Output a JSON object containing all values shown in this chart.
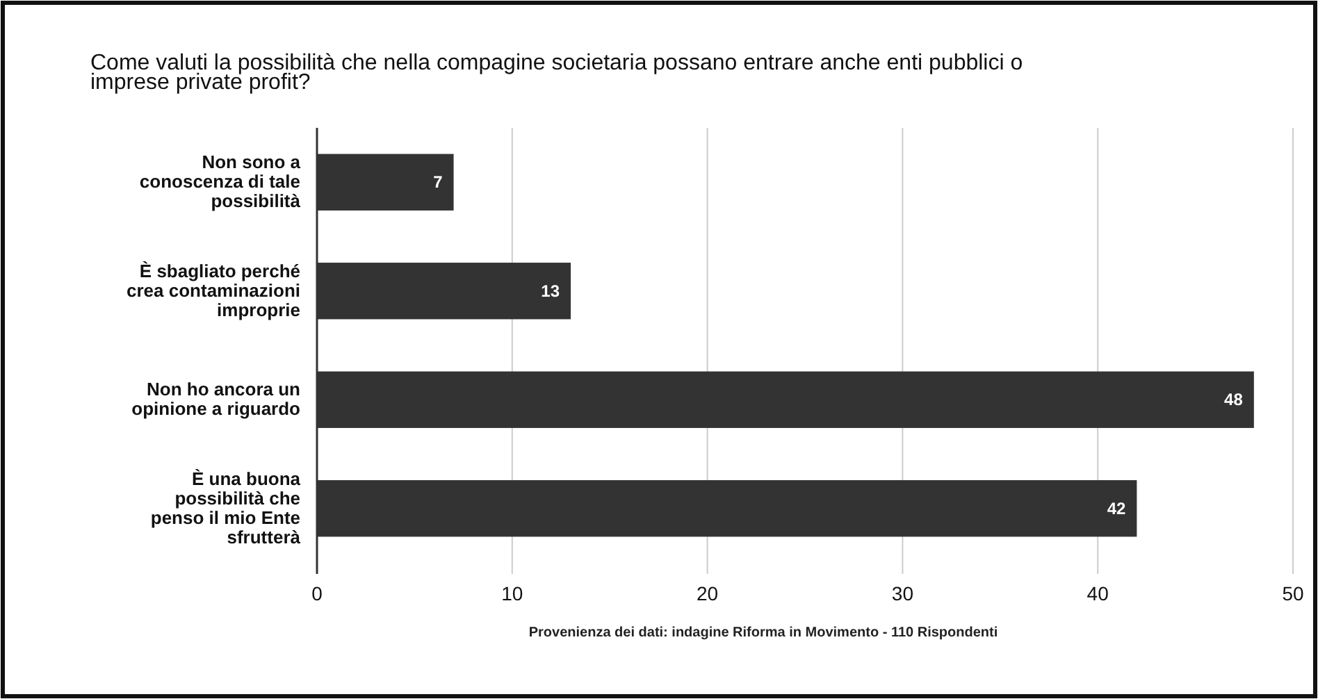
{
  "chart_data": {
    "type": "bar",
    "orientation": "horizontal",
    "title": "Come valuti la possibilità che nella compagine societaria possano entrare anche enti pubblici o imprese private profit?",
    "categories": [
      "Non sono a conoscenza di tale possibilità",
      "È sbagliato perché crea contaminazioni improprie",
      "Non ho ancora un opinione a riguardo",
      "È una buona possibilità che penso il mio Ente sfrutterà"
    ],
    "values": [
      7,
      13,
      48,
      42
    ],
    "color": "#333333",
    "data_labels": true,
    "xlim": [
      0,
      50
    ],
    "xticks": [
      0,
      10,
      20,
      30,
      40,
      50
    ],
    "grid": "x",
    "annotations": [
      "Provenienza dei dati: indagine Riforma in Movimento - 110 Rispondenti"
    ]
  }
}
